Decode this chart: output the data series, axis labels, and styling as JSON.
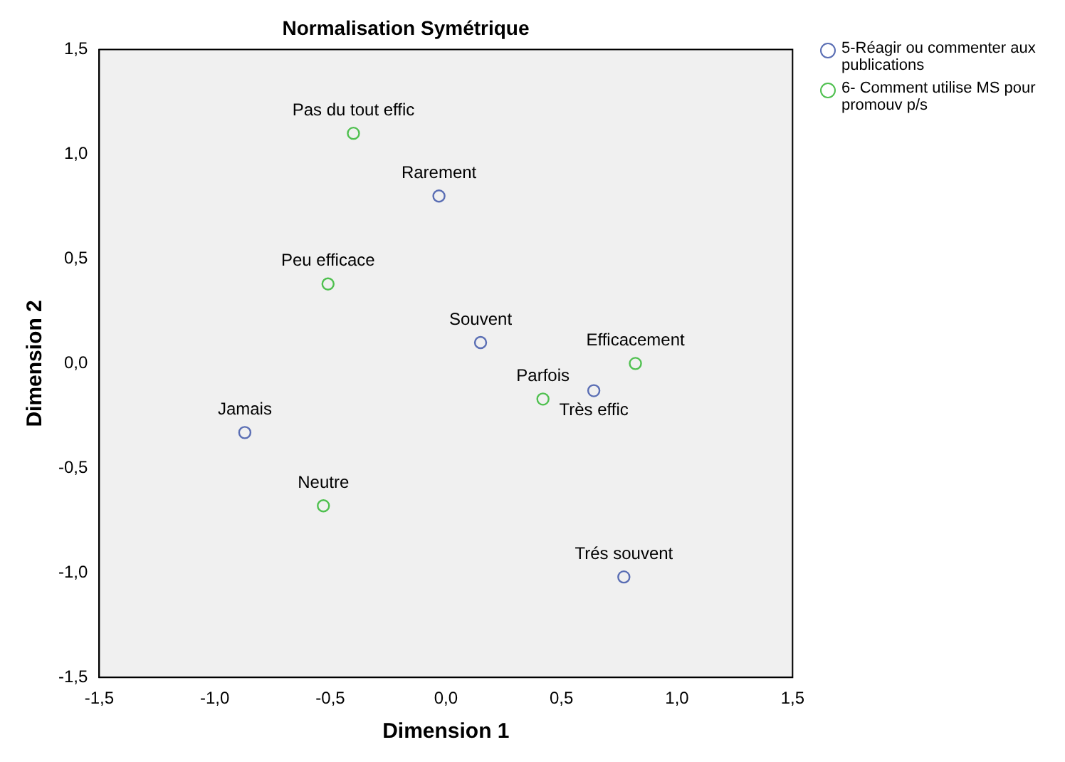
{
  "chart_data": {
    "type": "scatter",
    "title": "Normalisation Symétrique",
    "xlabel": "Dimension 1",
    "ylabel": "Dimension 2",
    "xlim": [
      -1.5,
      1.5
    ],
    "ylim": [
      -1.5,
      1.5
    ],
    "xticks": [
      {
        "value": -1.5,
        "label": "-1,5"
      },
      {
        "value": -1,
        "label": "-1,0"
      },
      {
        "value": -0.5,
        "label": "-0,5"
      },
      {
        "value": 0,
        "label": "0,0"
      },
      {
        "value": 0.5,
        "label": "0,5"
      },
      {
        "value": 1,
        "label": "1,0"
      },
      {
        "value": 1.5,
        "label": "1,5"
      }
    ],
    "yticks": [
      {
        "value": -1.5,
        "label": "-1,5"
      },
      {
        "value": -1,
        "label": "-1,0"
      },
      {
        "value": -0.5,
        "label": "-0,5"
      },
      {
        "value": 0,
        "label": "0,0"
      },
      {
        "value": 0.5,
        "label": "0,5"
      },
      {
        "value": 1,
        "label": "1,0"
      },
      {
        "value": 1.5,
        "label": "1,5"
      }
    ],
    "grid": false,
    "legend": "top right",
    "marker": "circle",
    "series": [
      {
        "name": "5-Réagir ou commenter aux publications",
        "color": "#5a6eb4",
        "x": [
          -0.03,
          0.15,
          0.64,
          -0.87,
          0.77
        ],
        "values": [
          0.8,
          0.1,
          -0.13,
          -0.33,
          -1.02
        ]
      },
      {
        "name": "6- Comment utilise MS pour promouv p/s",
        "color": "#4fc04f",
        "x": [
          -0.4,
          -0.51,
          0.82,
          0.42,
          -0.53
        ],
        "values": [
          1.1,
          0.38,
          0.0,
          -0.17,
          -0.68
        ]
      }
    ],
    "annotations": [
      {
        "text": "Rarement",
        "x": -0.03,
        "y": 0.8
      },
      {
        "text": "Souvent",
        "x": 0.15,
        "y": 0.1
      },
      {
        "text": "Parfois",
        "x": 0.42,
        "y": -0.17
      },
      {
        "text": "Jamais",
        "x": -0.87,
        "y": -0.33
      },
      {
        "text": "Trés souvent",
        "x": 0.77,
        "y": -1.02
      },
      {
        "text": "Pas du tout effic",
        "x": -0.4,
        "y": 1.1
      },
      {
        "text": "Peu efficace",
        "x": -0.51,
        "y": 0.38
      },
      {
        "text": "Efficacement",
        "x": 0.82,
        "y": 0.0
      },
      {
        "text": "Très effic",
        "x": 0.64,
        "y": -0.13
      },
      {
        "text": "Neutre",
        "x": -0.53,
        "y": -0.68
      }
    ]
  }
}
